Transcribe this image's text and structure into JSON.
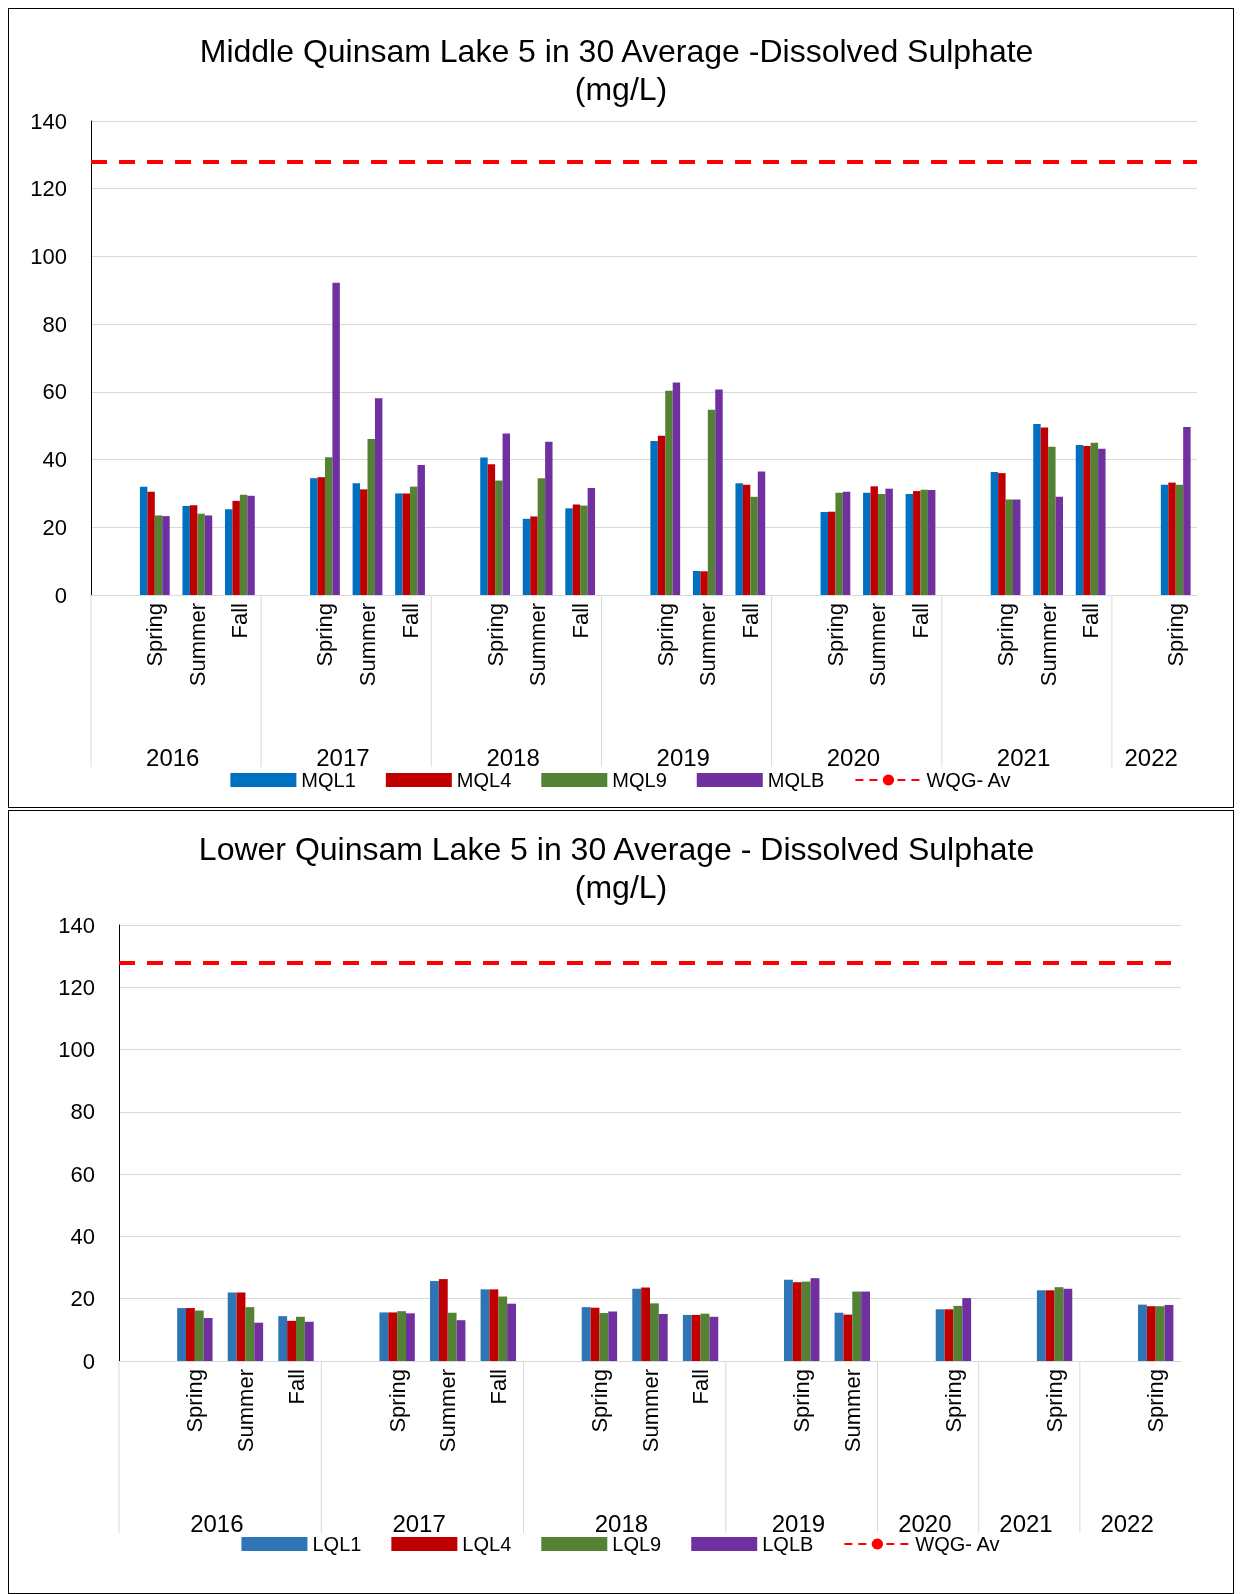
{
  "chart_data": [
    {
      "type": "bar",
      "title": "Middle Quinsam Lake 5 in 30 Average -Dissolved Sulphate (mg/L)",
      "categories": [
        null,
        "Spring",
        "Summer",
        "Fall",
        null,
        "Spring",
        "Summer",
        "Fall",
        null,
        "Spring",
        "Summer",
        "Fall",
        null,
        "Spring",
        "Summer",
        "Fall",
        null,
        "Spring",
        "Summer",
        "Fall",
        null,
        "Spring",
        "Summer",
        "Fall",
        null,
        "Spring"
      ],
      "annotations": [
        "2016",
        "2017",
        "2018",
        "2019",
        "2020",
        "2021",
        "2022"
      ],
      "series": [
        {
          "name": "MQL1",
          "color": "#0070c0",
          "values": [
            null,
            32,
            26.3,
            25.3,
            null,
            34.5,
            33,
            30,
            null,
            40.6,
            22.5,
            25.6,
            null,
            45.5,
            7.1,
            33,
            null,
            24.5,
            30.2,
            29.8,
            null,
            36.3,
            50.5,
            44.3,
            null,
            32.6
          ]
        },
        {
          "name": "MQL4",
          "color": "#c00000",
          "values": [
            null,
            30.5,
            26.5,
            27.8,
            null,
            34.8,
            31.2,
            30,
            null,
            38.6,
            23.2,
            26.7,
            null,
            47,
            7,
            32.6,
            null,
            24.6,
            32.1,
            30.7,
            null,
            36,
            49.5,
            44,
            null,
            33.2
          ]
        },
        {
          "name": "MQL9",
          "color": "#548235",
          "values": [
            null,
            23.5,
            24,
            29.6,
            null,
            40.7,
            46.1,
            32,
            null,
            33.8,
            34.5,
            26.4,
            null,
            60.3,
            54.7,
            29,
            null,
            30.2,
            29.8,
            31.1,
            null,
            28.2,
            43.8,
            45,
            null,
            32.6
          ]
        },
        {
          "name": "MQLB",
          "color": "#7030a0",
          "values": [
            null,
            23.3,
            23.5,
            29.3,
            null,
            92.2,
            58.1,
            38.4,
            null,
            47.7,
            45.3,
            31.6,
            null,
            62.8,
            60.7,
            36.5,
            null,
            30.5,
            31.4,
            31,
            null,
            28.2,
            29,
            43.2,
            null,
            49.6
          ]
        }
      ],
      "ref_lines": [
        {
          "axis": "y",
          "value": 128,
          "label": "WQG- Av",
          "color": "#ff0000",
          "line_style": "dashed"
        }
      ],
      "ylim": [
        0,
        140
      ],
      "yticks": [
        0,
        20,
        40,
        60,
        80,
        100,
        120,
        140
      ],
      "grid": "y",
      "legend": "bottom"
    },
    {
      "type": "bar",
      "title": "Lower Quinsam Lake 5 in 30 Average - Dissolved Sulphate (mg/L)",
      "categories": [
        null,
        "Spring",
        "Summer",
        "Fall",
        null,
        "Spring",
        "Summer",
        "Fall",
        null,
        "Spring",
        "Summer",
        "Fall",
        null,
        "Spring",
        "Summer",
        null,
        "Spring",
        null,
        "Spring",
        null,
        "Spring"
      ],
      "annotations": [
        "2016",
        "2017",
        "2018",
        "2019",
        "2020",
        "2021",
        "2022"
      ],
      "series": [
        {
          "name": "LQL1",
          "color": "#2e75b6",
          "values": [
            null,
            17,
            22,
            14.4,
            null,
            15.6,
            25.7,
            23,
            null,
            17.3,
            23.2,
            14.8,
            null,
            26.1,
            15.5,
            null,
            16.6,
            null,
            22.7,
            null,
            18.1
          ]
        },
        {
          "name": "LQL4",
          "color": "#c00000",
          "values": [
            null,
            17,
            22,
            12.9,
            null,
            15.6,
            26.3,
            23,
            null,
            17.1,
            23.6,
            14.8,
            null,
            25.3,
            14.9,
            null,
            16.6,
            null,
            22.7,
            null,
            17.6
          ]
        },
        {
          "name": "LQL9",
          "color": "#548235",
          "values": [
            null,
            16.2,
            17.3,
            14.2,
            null,
            16,
            15.5,
            20.7,
            null,
            15.4,
            18.5,
            15.2,
            null,
            25.5,
            22.3,
            null,
            17.7,
            null,
            23.7,
            null,
            17.6
          ]
        },
        {
          "name": "LQLB",
          "color": "#7030a0",
          "values": [
            null,
            13.8,
            12.3,
            12.6,
            null,
            15.3,
            13.1,
            18.4,
            null,
            15.9,
            15.1,
            14.2,
            null,
            26.6,
            22.3,
            null,
            20.2,
            null,
            23.2,
            null,
            18
          ]
        }
      ],
      "ref_lines": [
        {
          "axis": "y",
          "value": 128,
          "label": "WQG- Av",
          "color": "#ff0000",
          "line_style": "dashed"
        }
      ],
      "ylim": [
        0,
        140
      ],
      "yticks": [
        0,
        20,
        40,
        60,
        80,
        100,
        120,
        140
      ],
      "grid": "y",
      "legend": "bottom"
    }
  ]
}
